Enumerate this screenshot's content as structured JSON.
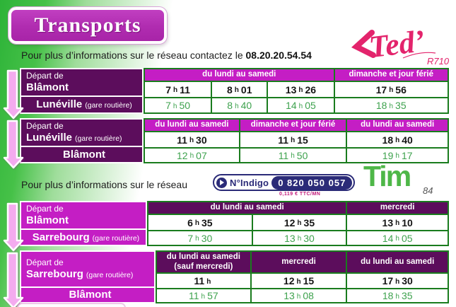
{
  "page": {
    "title": "Transports",
    "info1_prefix": "Pour plus d’informations sur le réseau contactez le",
    "phone": "08.20.20.54.54",
    "ted_name": "Ted’",
    "ted_route": "R710",
    "info2_prefix": "Pour plus d’informations sur le réseau",
    "indigo_name": "N°Indigo",
    "indigo_number": "0 820 050 057",
    "indigo_rate": "0,119 € TTC/MN",
    "tim_name": "Tim",
    "tim_route": "84",
    "hour_sep": "h"
  },
  "colors": {
    "magenta": "#c41ec4",
    "purple": "#5c0d5c",
    "grid_green": "#1a7c1e",
    "time_green": "#3ea24e",
    "ted_pink": "#e3246c",
    "tim_green": "#4eb748",
    "indigo_navy": "#2b2b78",
    "background_green": "#2db338",
    "arrow_pink": "#f4abef"
  },
  "tables": [
    {
      "style": "ted",
      "depart_label": "Départ de",
      "from": {
        "city": "Blâmont",
        "suffix": ""
      },
      "to": {
        "city": "Lunéville",
        "suffix": "(gare routière)"
      },
      "headers": [
        {
          "label": "du lundi au samedi",
          "span": 3
        },
        {
          "label": "dimanche et jour férié",
          "span": 1
        }
      ],
      "departures": [
        {
          "h": "7",
          "m": "11"
        },
        {
          "h": "8",
          "m": "01"
        },
        {
          "h": "13",
          "m": "26"
        },
        {
          "h": "17",
          "m": "56"
        }
      ],
      "arrivals": [
        {
          "h": "7",
          "m": "50"
        },
        {
          "h": "8",
          "m": "40"
        },
        {
          "h": "14",
          "m": "05"
        },
        {
          "h": "18",
          "m": "35"
        }
      ]
    },
    {
      "style": "ted",
      "depart_label": "Départ de",
      "from": {
        "city": "Lunéville",
        "suffix": "(gare routière)"
      },
      "to": {
        "city": "Blâmont",
        "suffix": ""
      },
      "headers": [
        {
          "label": "du lundi au samedi",
          "span": 1
        },
        {
          "label": "dimanche et jour férié",
          "span": 1
        },
        {
          "label": "du lundi au samedi",
          "span": 1
        }
      ],
      "departures": [
        {
          "h": "11",
          "m": "30"
        },
        {
          "h": "11",
          "m": "15"
        },
        {
          "h": "18",
          "m": "40"
        }
      ],
      "arrivals": [
        {
          "h": "12",
          "m": "07"
        },
        {
          "h": "11",
          "m": "50"
        },
        {
          "h": "19",
          "m": "17"
        }
      ]
    },
    {
      "style": "tim",
      "depart_label": "Départ de",
      "from": {
        "city": "Blâmont",
        "suffix": ""
      },
      "to": {
        "city": "Sarrebourg",
        "suffix": "(gare routière)"
      },
      "headers": [
        {
          "label": "du lundi au samedi",
          "span": 2
        },
        {
          "label": "mercredi",
          "span": 1
        }
      ],
      "departures": [
        {
          "h": "6",
          "m": "35"
        },
        {
          "h": "12",
          "m": "35"
        },
        {
          "h": "13",
          "m": "10"
        }
      ],
      "arrivals": [
        {
          "h": "7",
          "m": "30"
        },
        {
          "h": "13",
          "m": "30"
        },
        {
          "h": "14",
          "m": "05"
        }
      ]
    },
    {
      "style": "tim",
      "depart_label": "Départ de",
      "from": {
        "city": "Sarrebourg",
        "suffix": "(gare routière)"
      },
      "to": {
        "city": "Blâmont",
        "suffix": ""
      },
      "headers": [
        {
          "label": "du lundi au samedi\n(sauf mercredi)",
          "span": 1
        },
        {
          "label": "mercredi",
          "span": 1
        },
        {
          "label": "du lundi au samedi",
          "span": 1
        }
      ],
      "departures": [
        {
          "h": "11",
          "m": ""
        },
        {
          "h": "12",
          "m": "15"
        },
        {
          "h": "17",
          "m": "30"
        }
      ],
      "arrivals": [
        {
          "h": "11",
          "m": "57"
        },
        {
          "h": "13",
          "m": "08"
        },
        {
          "h": "18",
          "m": "35"
        }
      ]
    }
  ]
}
